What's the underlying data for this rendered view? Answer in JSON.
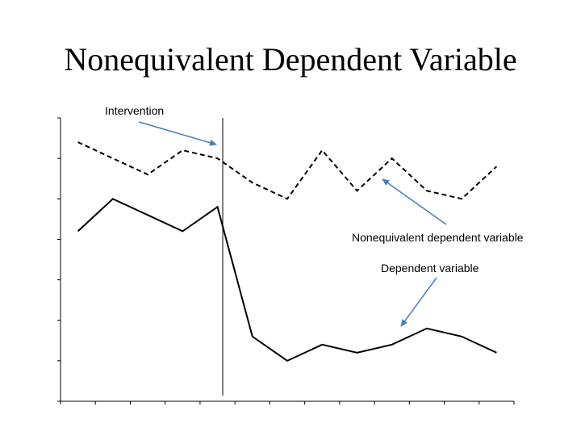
{
  "title": "Nonequivalent Dependent Variable",
  "chart_data": {
    "type": "line",
    "x": [
      1,
      2,
      3,
      4,
      5,
      6,
      7,
      8,
      9,
      10,
      11,
      12,
      13
    ],
    "xlim": [
      0.5,
      13.5
    ],
    "ylim": [
      0,
      35
    ],
    "intervention_x": 5.15,
    "series": [
      {
        "name": "Nonequivalent dependent variable",
        "style": "dashed",
        "color": "#000000",
        "values": [
          32,
          30,
          28,
          31,
          30,
          27,
          25,
          31,
          26,
          30,
          26,
          25,
          29
        ]
      },
      {
        "name": "Dependent variable",
        "style": "solid",
        "color": "#000000",
        "values": [
          21,
          25,
          23,
          21,
          24,
          8,
          5,
          7,
          6,
          7,
          9,
          8,
          6
        ]
      }
    ],
    "annotations": {
      "intervention": "Intervention",
      "nonequivalent": "Nonequivalent dependent variable",
      "dependent": "Dependent variable"
    },
    "arrow_color": "#4a7ebb"
  }
}
